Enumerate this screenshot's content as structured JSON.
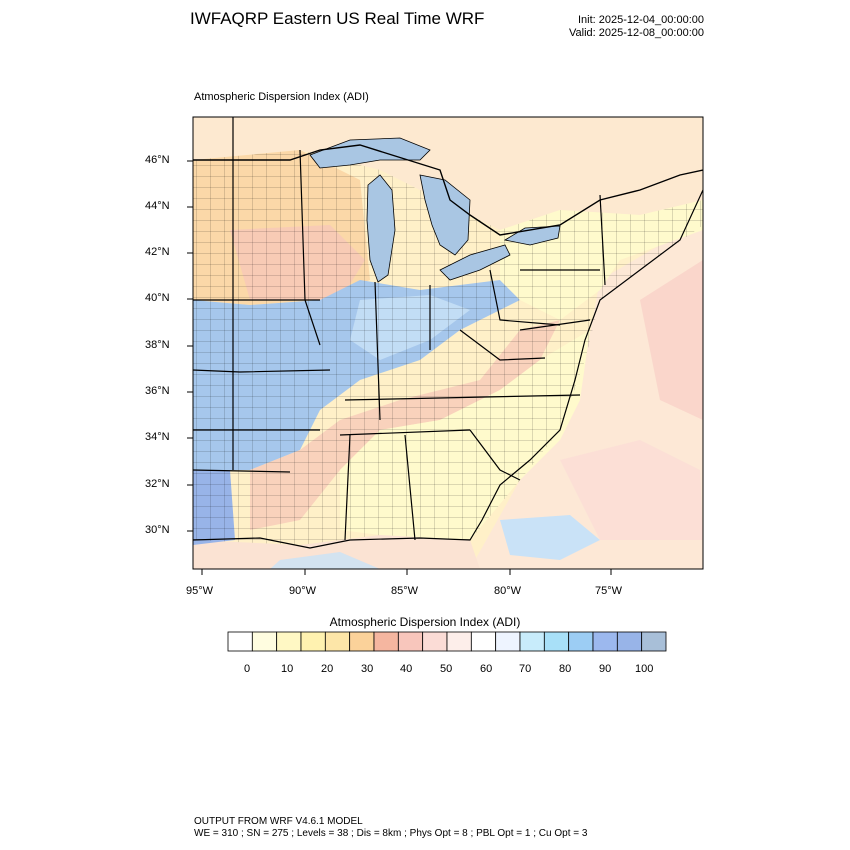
{
  "header": {
    "title": "IWFAQRP Eastern US Real Time WRF",
    "init": "Init: 2025-12-04_00:00:00",
    "valid": "Valid: 2025-12-08_00:00:00"
  },
  "map": {
    "subtitle": "Atmospheric Dispersion Index   (ADI)",
    "lat_labels": [
      "46°N",
      "44°N",
      "42°N",
      "40°N",
      "38°N",
      "36°N",
      "34°N",
      "32°N",
      "30°N"
    ],
    "lon_labels": [
      "95°W",
      "90°W",
      "85°W",
      "80°W",
      "75°W"
    ],
    "colors": {
      "lake": "#a9c6e3",
      "ocean_light": "#fde8d6",
      "land_bg": "#fff0c8",
      "low": "#fffacc",
      "mid": "#f7c8b8",
      "orange": "#fbd8a8",
      "blue": "#a6c7ec",
      "light_blue": "#c9e2f7",
      "border": "#000000"
    }
  },
  "colorbar": {
    "title": "Atmospheric Dispersion Index  (ADI)",
    "labels": [
      "0",
      "10",
      "20",
      "30",
      "40",
      "50",
      "60",
      "70",
      "80",
      "90",
      "100"
    ],
    "colors": [
      "#ffffff",
      "#fffde0",
      "#fff8c4",
      "#fff2b0",
      "#fde6a8",
      "#fbd29a",
      "#f5b6a0",
      "#f8c6bc",
      "#fbdcd6",
      "#fdeeea",
      "#ffffff",
      "#eef4ff",
      "#c8ecfb",
      "#a8e0f8",
      "#9ccdf4",
      "#9cb8ee",
      "#98b4e8",
      "#a8bfd8"
    ]
  },
  "footer": {
    "line1": "OUTPUT FROM WRF V4.6.1 MODEL",
    "line2": "WE = 310 ; SN = 275 ; Levels = 38 ; Dis = 8km ; Phys Opt = 8 ; PBL Opt = 1 ; Cu Opt = 3"
  }
}
